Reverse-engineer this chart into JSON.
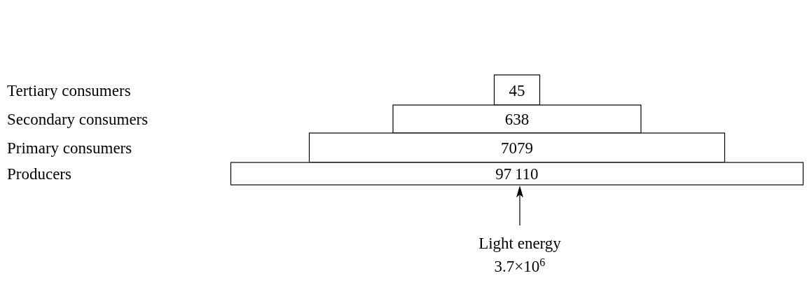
{
  "chart_data": {
    "type": "other",
    "categories": [
      "Tertiary consumers",
      "Secondary consumers",
      "Primary consumers",
      "Producers"
    ],
    "values": [
      45,
      638,
      7079,
      97110
    ],
    "data_labels": true,
    "annotations": [
      "Light energy",
      "3.7×10$^{6}$"
    ]
  }
}
